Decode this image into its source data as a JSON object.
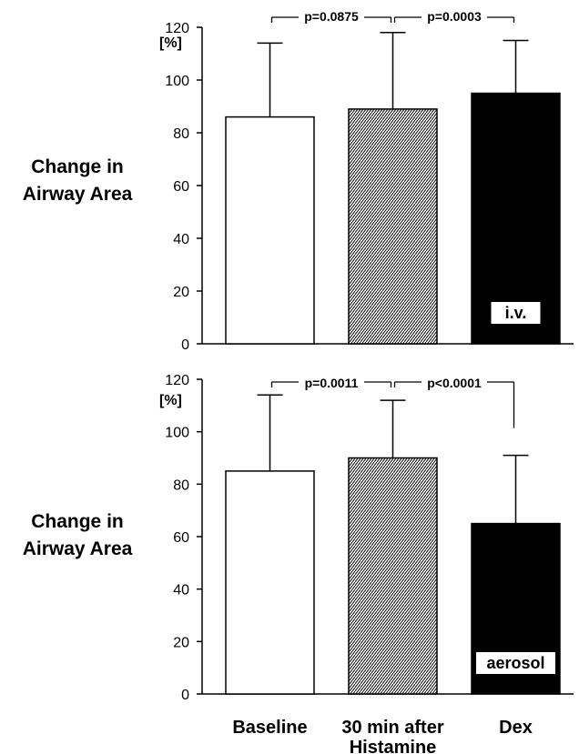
{
  "chart_data": [
    {
      "type": "bar",
      "panel": "top",
      "categories": [
        "Baseline",
        "30 min after Histamine",
        "Dex"
      ],
      "values": [
        86,
        89,
        95
      ],
      "error_upper": [
        114,
        118,
        115
      ],
      "ylabel": "Change in Airway Area",
      "unit": "[%]",
      "ylim": [
        0,
        120
      ],
      "yticks": [
        "0",
        "20",
        "40",
        "60",
        "80",
        "100",
        "120"
      ],
      "bar_fills": [
        "white",
        "hatched",
        "black"
      ],
      "bar_annotation": "i.v.",
      "comparisons": [
        {
          "from": 0,
          "to": 1,
          "label": "p=0.0875"
        },
        {
          "from": 1,
          "to": 2,
          "label": "p=0.0003"
        }
      ]
    },
    {
      "type": "bar",
      "panel": "bottom",
      "categories": [
        "Baseline",
        "30 min after Histamine",
        "Dex"
      ],
      "values": [
        85,
        90,
        65
      ],
      "error_upper": [
        114,
        112,
        91
      ],
      "ylabel": "Change in Airway Area",
      "unit": "[%]",
      "ylim": [
        0,
        120
      ],
      "yticks": [
        "0",
        "20",
        "40",
        "60",
        "80",
        "100",
        "120"
      ],
      "bar_fills": [
        "white",
        "hatched",
        "black"
      ],
      "bar_annotation": "aerosol",
      "comparisons": [
        {
          "from": 0,
          "to": 1,
          "label": "p=0.0011"
        },
        {
          "from": 1,
          "to": 2,
          "label": "p<0.0001"
        }
      ]
    }
  ],
  "x_axis": {
    "labels": [
      {
        "line1": "Baseline",
        "line2": ""
      },
      {
        "line1": "30 min after",
        "line2": "Histamine"
      },
      {
        "line1": "Dex",
        "line2": ""
      }
    ]
  },
  "colors": {
    "ink": "#000000",
    "background": "#ffffff"
  }
}
